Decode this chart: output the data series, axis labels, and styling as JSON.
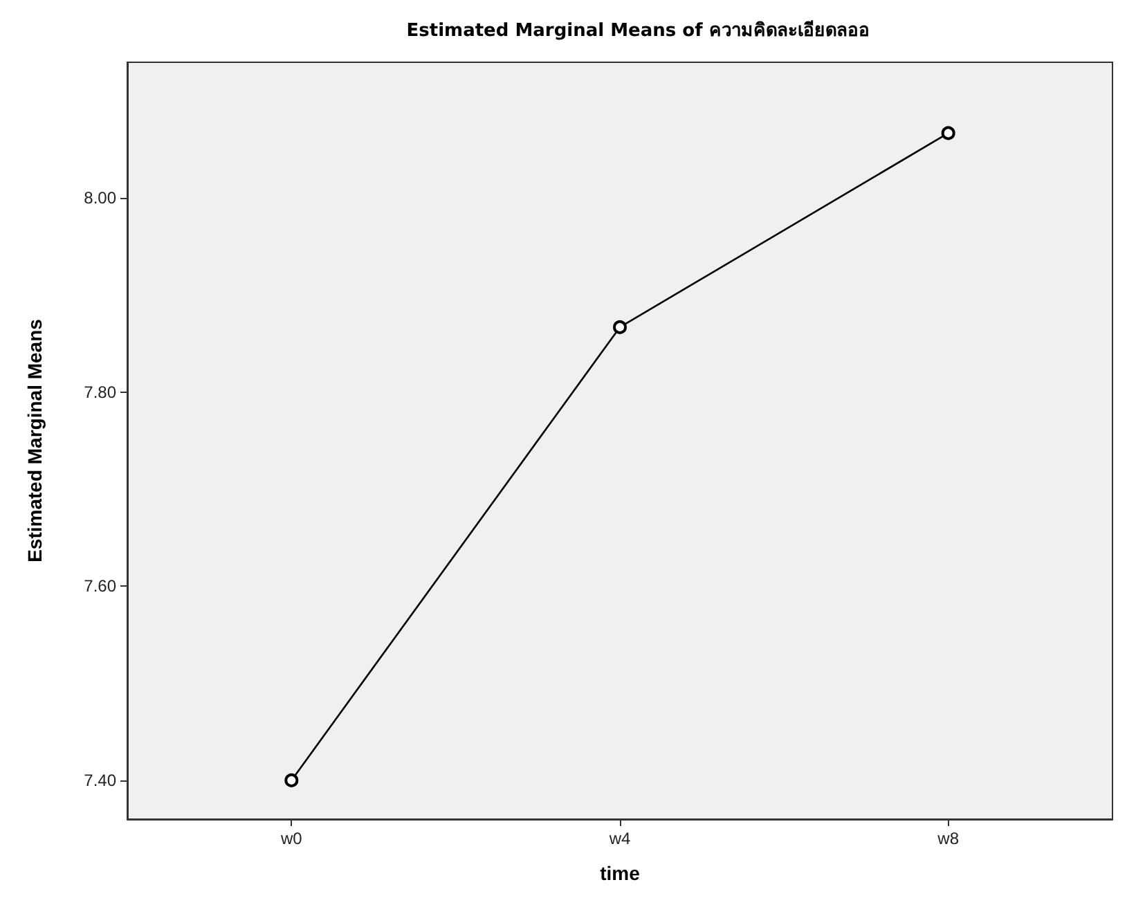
{
  "chart_data": {
    "type": "line",
    "title": "Estimated Marginal Means of ความคิดละเอียดลออ",
    "xlabel": "time",
    "ylabel": "Estimated Marginal Means",
    "categories": [
      "w0",
      "w4",
      "w8"
    ],
    "series": [
      {
        "color": "#000000",
        "values": [
          7.4,
          7.867,
          8.067
        ]
      }
    ],
    "ylim": [
      7.36,
      8.14
    ],
    "yticks": [
      {
        "value": 7.4,
        "label": "7.40"
      },
      {
        "value": 7.6,
        "label": "7.60"
      },
      {
        "value": 7.8,
        "label": "7.80"
      },
      {
        "value": 8,
        "label": "8.00"
      }
    ],
    "grid": false,
    "marker": "circle",
    "line_style": "solid"
  }
}
